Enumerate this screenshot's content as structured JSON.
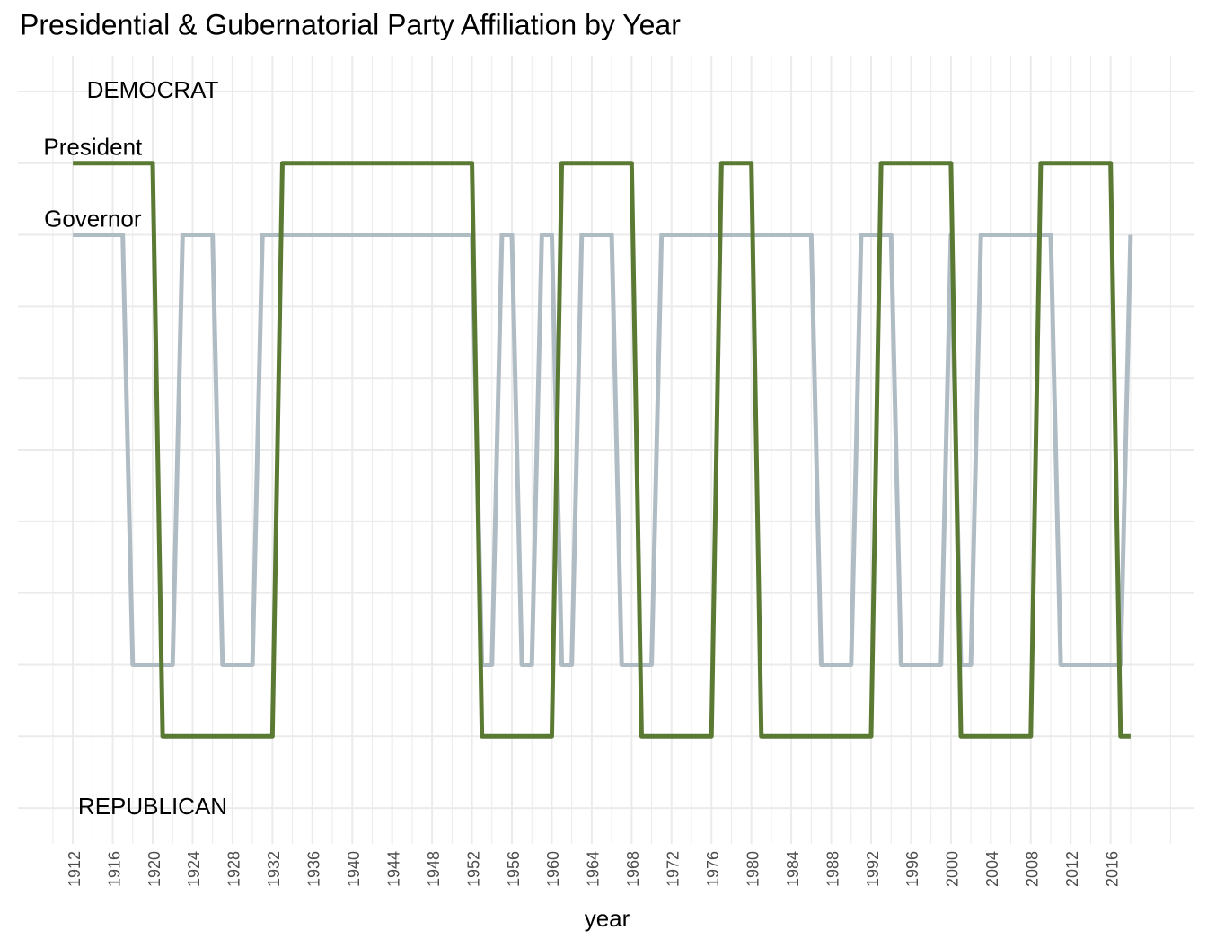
{
  "chart_data": {
    "type": "line",
    "title": "Presidential & Gubernatorial Party Affiliation by Year",
    "x_label": "year",
    "x": [
      1912,
      1913,
      1914,
      1915,
      1916,
      1917,
      1918,
      1919,
      1920,
      1921,
      1922,
      1923,
      1924,
      1925,
      1926,
      1927,
      1928,
      1929,
      1930,
      1931,
      1932,
      1933,
      1934,
      1935,
      1936,
      1937,
      1938,
      1939,
      1940,
      1941,
      1942,
      1943,
      1944,
      1945,
      1946,
      1947,
      1948,
      1949,
      1950,
      1951,
      1952,
      1953,
      1954,
      1955,
      1956,
      1957,
      1958,
      1959,
      1960,
      1961,
      1962,
      1963,
      1964,
      1965,
      1966,
      1967,
      1968,
      1969,
      1970,
      1971,
      1972,
      1973,
      1974,
      1975,
      1976,
      1977,
      1978,
      1979,
      1980,
      1981,
      1982,
      1983,
      1984,
      1985,
      1986,
      1987,
      1988,
      1989,
      1990,
      1991,
      1992,
      1993,
      1994,
      1995,
      1996,
      1997,
      1998,
      1999,
      2000,
      2001,
      2002,
      2003,
      2004,
      2005,
      2006,
      2007,
      2008,
      2009,
      2010,
      2011,
      2012,
      2013,
      2014,
      2015,
      2016,
      2017,
      2018
    ],
    "series": [
      {
        "name": "Governor",
        "color": "#b0bcc4",
        "values": [
          3,
          3,
          3,
          3,
          3,
          3,
          -3,
          -3,
          -3,
          -3,
          -3,
          3,
          3,
          3,
          3,
          -3,
          -3,
          -3,
          -3,
          3,
          3,
          3,
          3,
          3,
          3,
          3,
          3,
          3,
          3,
          3,
          3,
          3,
          3,
          3,
          3,
          3,
          3,
          3,
          3,
          3,
          3,
          -3,
          -3,
          3,
          3,
          -3,
          -3,
          3,
          3,
          -3,
          -3,
          3,
          3,
          3,
          3,
          -3,
          -3,
          -3,
          -3,
          3,
          3,
          3,
          3,
          3,
          3,
          3,
          3,
          3,
          3,
          3,
          3,
          3,
          3,
          3,
          3,
          -3,
          -3,
          -3,
          -3,
          3,
          3,
          3,
          3,
          -3,
          -3,
          -3,
          -3,
          -3,
          3,
          -3,
          -3,
          3,
          3,
          3,
          3,
          3,
          3,
          3,
          3,
          -3,
          -3,
          -3,
          -3,
          -3,
          -3,
          -3,
          3
        ]
      },
      {
        "name": "President",
        "color": "#5a7a34",
        "values": [
          4,
          4,
          4,
          4,
          4,
          4,
          4,
          4,
          4,
          -4,
          -4,
          -4,
          -4,
          -4,
          -4,
          -4,
          -4,
          -4,
          -4,
          -4,
          -4,
          4,
          4,
          4,
          4,
          4,
          4,
          4,
          4,
          4,
          4,
          4,
          4,
          4,
          4,
          4,
          4,
          4,
          4,
          4,
          4,
          -4,
          -4,
          -4,
          -4,
          -4,
          -4,
          -4,
          -4,
          4,
          4,
          4,
          4,
          4,
          4,
          4,
          4,
          -4,
          -4,
          -4,
          -4,
          -4,
          -4,
          -4,
          -4,
          4,
          4,
          4,
          4,
          -4,
          -4,
          -4,
          -4,
          -4,
          -4,
          -4,
          -4,
          -4,
          -4,
          -4,
          -4,
          4,
          4,
          4,
          4,
          4,
          4,
          4,
          4,
          -4,
          -4,
          -4,
          -4,
          -4,
          -4,
          -4,
          -4,
          4,
          4,
          4,
          4,
          4,
          4,
          4,
          4,
          -4,
          -4
        ]
      }
    ],
    "annotations": [
      {
        "text": "DEMOCRAT",
        "x": 1920,
        "y": 5
      },
      {
        "text": "President",
        "x": 1914,
        "y": 4.2
      },
      {
        "text": "Governor",
        "x": 1914,
        "y": 3.2
      },
      {
        "text": "REPUBLICAN",
        "x": 1920,
        "y": -5
      }
    ],
    "xlim": [
      1906.5,
      2024.4
    ],
    "xticks": [
      1912,
      1916,
      1920,
      1924,
      1928,
      1932,
      1936,
      1940,
      1944,
      1948,
      1952,
      1956,
      1960,
      1964,
      1968,
      1972,
      1976,
      1980,
      1984,
      1988,
      1992,
      1996,
      2000,
      2004,
      2008,
      2012,
      2016
    ],
    "ylim": [
      -5.5,
      5.5
    ],
    "yticks": [
      -5,
      -4,
      -3,
      -2,
      -1,
      0,
      1,
      2,
      3,
      4,
      5
    ],
    "grid": true
  }
}
